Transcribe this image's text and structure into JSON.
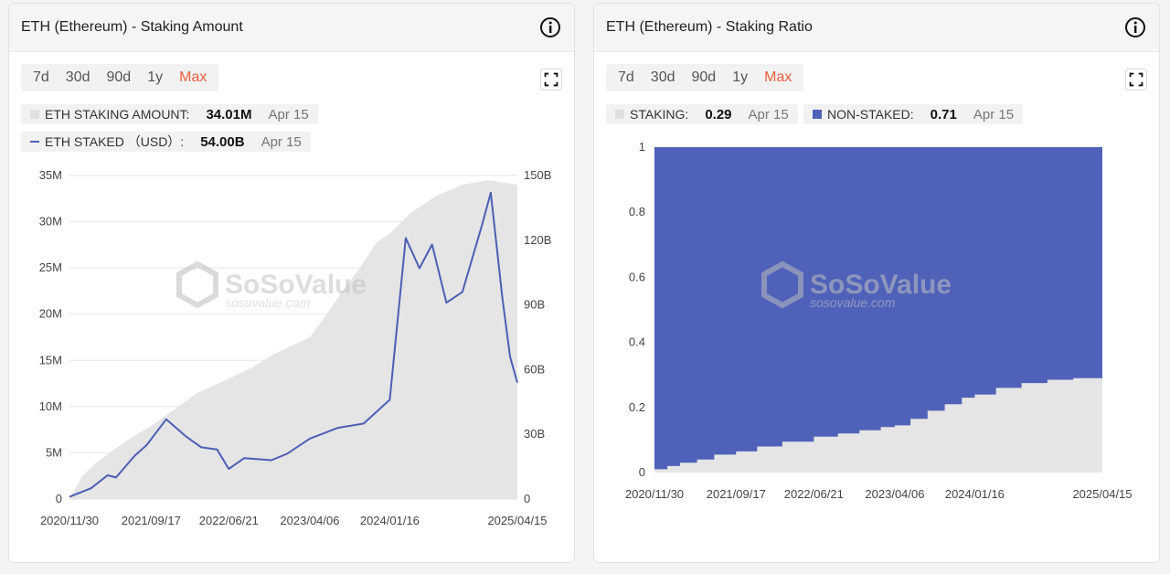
{
  "colors": {
    "accent": "#e8603c",
    "series_line": "#4c5fb5",
    "area_fill": "#e5e5e5",
    "nonstaked_fill": "#5061b9",
    "staking_fill": "#e5e5e5"
  },
  "range_tabs": [
    "7d",
    "30d",
    "90d",
    "1y",
    "Max"
  ],
  "active_range": "Max",
  "watermark": {
    "brand": "SoSoValue",
    "url": "sosovalue.com"
  },
  "left_panel": {
    "title": "ETH (Ethereum) - Staking Amount",
    "legend": [
      {
        "label": "ETH STAKING AMOUNT:",
        "value": "34.01M",
        "date": "Apr 15"
      },
      {
        "label": "ETH STAKED （USD）:",
        "value": "54.00B",
        "date": "Apr 15"
      }
    ]
  },
  "right_panel": {
    "title": "ETH (Ethereum) - Staking Ratio",
    "legend": [
      {
        "label": "STAKING:",
        "value": "0.29",
        "date": "Apr 15"
      },
      {
        "label": "NON-STAKED:",
        "value": "0.71",
        "date": "Apr 15"
      }
    ]
  },
  "chart_data": [
    {
      "type": "area",
      "title": "ETH (Ethereum) - Staking Amount",
      "x_tick_labels": [
        "2020/11/30",
        "2021/09/17",
        "2022/06/21",
        "2023/04/06",
        "2024/01/16",
        "2025/04/15"
      ],
      "x_range": [
        "2020/11/30",
        "2025/04/15"
      ],
      "y_left": {
        "ticks": [
          "0",
          "5M",
          "10M",
          "15M",
          "20M",
          "25M",
          "30M",
          "35M"
        ],
        "range": [
          0,
          35000000
        ]
      },
      "y_right": {
        "ticks": [
          "0",
          "30B",
          "60B",
          "90B",
          "120B",
          "150B"
        ],
        "range": [
          0,
          150000000000
        ]
      },
      "grid": true,
      "series": [
        {
          "name": "ETH STAKING AMOUNT",
          "type": "area",
          "axis": "left",
          "x": [
            "2020/11/30",
            "2021/01/15",
            "2021/03/01",
            "2021/05/01",
            "2021/07/01",
            "2021/09/17",
            "2021/12/01",
            "2022/03/01",
            "2022/06/21",
            "2022/09/15",
            "2022/12/01",
            "2023/02/15",
            "2023/04/06",
            "2023/06/01",
            "2023/08/01",
            "2023/10/01",
            "2023/12/01",
            "2024/01/16",
            "2024/04/01",
            "2024/07/01",
            "2024/10/01",
            "2025/01/01",
            "2025/04/15"
          ],
          "values": [
            0,
            2500000,
            3800000,
            5200000,
            6500000,
            7900000,
            9500000,
            11500000,
            13000000,
            14300000,
            15700000,
            16800000,
            17500000,
            19800000,
            22500000,
            25000000,
            27800000,
            28700000,
            31000000,
            32800000,
            34000000,
            34500000,
            34010000
          ]
        },
        {
          "name": "ETH STAKED （USD）",
          "type": "line",
          "axis": "right",
          "x": [
            "2020/11/30",
            "2021/02/15",
            "2021/04/15",
            "2021/05/15",
            "2021/07/20",
            "2021/09/01",
            "2021/11/10",
            "2022/01/20",
            "2022/03/15",
            "2022/05/10",
            "2022/06/21",
            "2022/08/15",
            "2022/11/20",
            "2023/01/15",
            "2023/04/06",
            "2023/07/15",
            "2023/10/15",
            "2024/01/16",
            "2024/03/13",
            "2024/05/01",
            "2024/06/15",
            "2024/08/05",
            "2024/10/01",
            "2024/12/10",
            "2025/01/10",
            "2025/02/20",
            "2025/03/20",
            "2025/04/15"
          ],
          "values": [
            1000000000,
            5000000000,
            11000000000,
            10000000000,
            20000000000,
            25000000000,
            37000000000,
            29000000000,
            24000000000,
            23000000000,
            14000000000,
            19000000000,
            18000000000,
            21000000000,
            28000000000,
            33000000000,
            35000000000,
            46000000000,
            121000000000,
            107000000000,
            118000000000,
            91000000000,
            96000000000,
            127000000000,
            142000000000,
            94000000000,
            66000000000,
            54000000000
          ]
        }
      ]
    },
    {
      "type": "area",
      "title": "ETH (Ethereum) - Staking Ratio",
      "x_tick_labels": [
        "2020/11/30",
        "2021/09/17",
        "2022/06/21",
        "2023/04/06",
        "2024/01/16",
        "2025/04/15"
      ],
      "x_range": [
        "2020/11/30",
        "2025/04/15"
      ],
      "y": {
        "ticks": [
          "0",
          "0.2",
          "0.4",
          "0.6",
          "0.8",
          "1"
        ],
        "range": [
          0,
          1
        ]
      },
      "stacked": true,
      "series": [
        {
          "name": "STAKING",
          "x": [
            "2020/11/30",
            "2021/01/15",
            "2021/03/01",
            "2021/05/01",
            "2021/07/01",
            "2021/09/17",
            "2021/12/01",
            "2022/03/01",
            "2022/06/21",
            "2022/09/15",
            "2022/12/01",
            "2023/02/15",
            "2023/04/06",
            "2023/06/01",
            "2023/08/01",
            "2023/10/01",
            "2023/12/01",
            "2024/01/16",
            "2024/04/01",
            "2024/07/01",
            "2024/10/01",
            "2025/01/01",
            "2025/04/15"
          ],
          "values": [
            0.01,
            0.02,
            0.03,
            0.04,
            0.055,
            0.065,
            0.08,
            0.095,
            0.11,
            0.12,
            0.13,
            0.14,
            0.145,
            0.165,
            0.19,
            0.21,
            0.23,
            0.24,
            0.26,
            0.275,
            0.285,
            0.29,
            0.29
          ]
        },
        {
          "name": "NON-STAKED",
          "x": [
            "2020/11/30",
            "2021/01/15",
            "2021/03/01",
            "2021/05/01",
            "2021/07/01",
            "2021/09/17",
            "2021/12/01",
            "2022/03/01",
            "2022/06/21",
            "2022/09/15",
            "2022/12/01",
            "2023/02/15",
            "2023/04/06",
            "2023/06/01",
            "2023/08/01",
            "2023/10/01",
            "2023/12/01",
            "2024/01/16",
            "2024/04/01",
            "2024/07/01",
            "2024/10/01",
            "2025/01/01",
            "2025/04/15"
          ],
          "values": [
            0.99,
            0.98,
            0.97,
            0.96,
            0.945,
            0.935,
            0.92,
            0.905,
            0.89,
            0.88,
            0.87,
            0.86,
            0.855,
            0.835,
            0.81,
            0.79,
            0.77,
            0.76,
            0.74,
            0.725,
            0.715,
            0.71,
            0.71
          ]
        }
      ]
    }
  ]
}
